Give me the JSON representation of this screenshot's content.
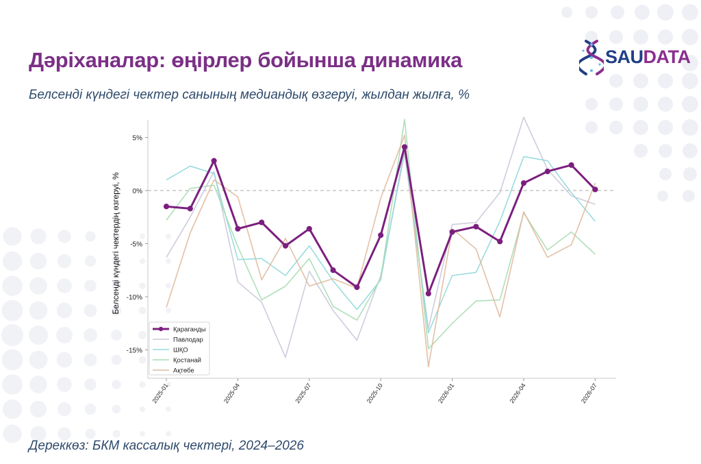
{
  "page": {
    "title": "Дәріханалар: өңірлер бойынша динамика",
    "subtitle": "Белсенді күндегі чектер санының медиандық өзгеруі, жылдан жылға, %",
    "source": "Дереккөз: БКМ кассалық чектері, 2024–2026",
    "logo_part1": "SAU",
    "logo_part2": "DATA"
  },
  "colors": {
    "title": "#7b2f86",
    "subtitle": "#2e4a6b",
    "logo_blue": "#1f3f86",
    "logo_purple": "#8a2e8f"
  },
  "chart_data": {
    "type": "line",
    "title": "",
    "xlabel": "",
    "ylabel": "Белсенді күндегі чектердің өзгеруі, %",
    "x": [
      "2025-01",
      "2025-02",
      "2025-03",
      "2025-04",
      "2025-05",
      "2025-06",
      "2025-07",
      "2025-08",
      "2025-09",
      "2025-10",
      "2025-11",
      "2025-12",
      "2026-01",
      "2026-02",
      "2026-03",
      "2026-04",
      "2026-05",
      "2026-06",
      "2026-07"
    ],
    "xticks": [
      "2025-01",
      "2025-04",
      "2025-07",
      "2025-10",
      "2026-01",
      "2026-04",
      "2026-07"
    ],
    "yticks": [
      5,
      0,
      -5,
      -10,
      -15
    ],
    "ytick_labels": [
      "5%",
      "0%",
      "-5%",
      "-10%",
      "-15%"
    ],
    "ylim": [
      -17.5,
      7.5
    ],
    "reference_line": 0,
    "grid": false,
    "legend_position": "lower-left",
    "series": [
      {
        "name": "Қараганды",
        "color": "#7b1f7e",
        "highlight": true,
        "values": [
          -1.5,
          -1.7,
          2.8,
          -3.6,
          -3.0,
          -5.2,
          -3.6,
          -7.5,
          -9.1,
          -4.2,
          4.1,
          -9.7,
          -3.9,
          -3.4,
          -4.8,
          0.7,
          1.8,
          2.4,
          0.1
        ]
      },
      {
        "name": "Павлодар",
        "color": "#c9c7d8",
        "highlight": false,
        "values": [
          -6.3,
          -2.5,
          1.8,
          -8.6,
          -10.5,
          -15.7,
          -7.6,
          -11.3,
          -14.1,
          -8.0,
          3.5,
          -13.0,
          -3.2,
          -3.0,
          -0.2,
          6.9,
          2.0,
          -0.5,
          -1.3
        ]
      },
      {
        "name": "ШҚО",
        "color": "#8fd8da",
        "highlight": false,
        "values": [
          1.0,
          2.3,
          1.6,
          -6.5,
          -6.4,
          -8.0,
          -5.2,
          -8.5,
          -11.2,
          -8.4,
          4.0,
          -13.4,
          -8.0,
          -7.7,
          -2.9,
          3.2,
          2.8,
          -0.2,
          -2.9
        ]
      },
      {
        "name": "Қостанай",
        "color": "#a6dcb2",
        "highlight": false,
        "values": [
          -2.8,
          0.2,
          0.5,
          -5.3,
          -10.3,
          -9.0,
          -6.4,
          -10.9,
          -12.2,
          -8.3,
          6.7,
          -14.9,
          -12.5,
          -10.4,
          -10.3,
          -2.1,
          -5.6,
          -3.9,
          -6.0
        ]
      },
      {
        "name": "Ақтөбе",
        "color": "#e0b99c",
        "highlight": false,
        "values": [
          -11.0,
          -4.0,
          1.0,
          -0.6,
          -8.4,
          -4.5,
          -9.0,
          -8.3,
          -9.2,
          -0.7,
          5.2,
          -16.6,
          -3.6,
          -5.5,
          -11.9,
          -2.0,
          -6.3,
          -5.1,
          0.7
        ]
      }
    ]
  }
}
